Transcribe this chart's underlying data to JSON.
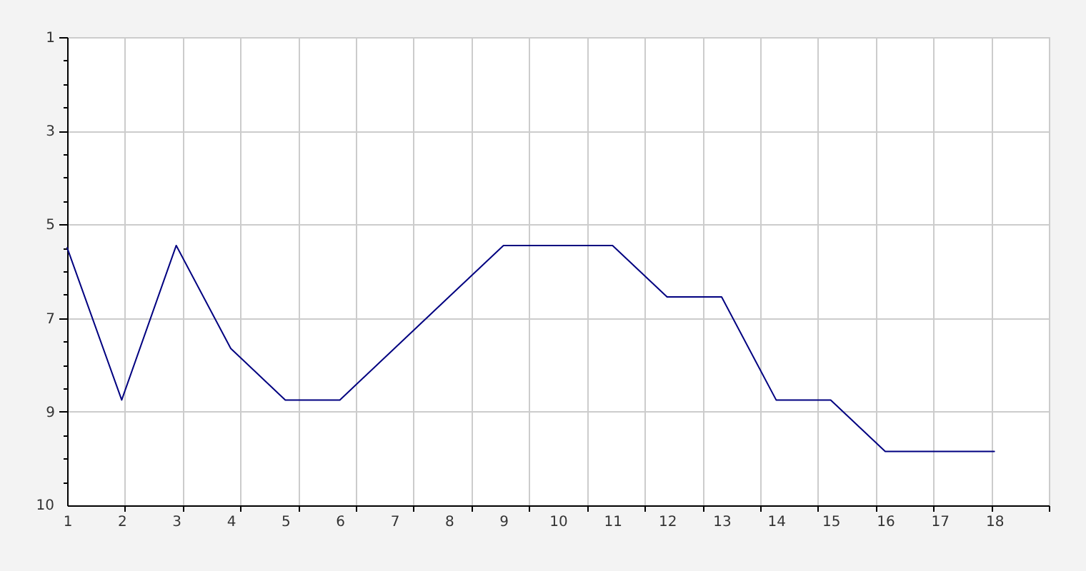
{
  "chart_data": {
    "type": "line",
    "x": [
      1,
      2,
      3,
      4,
      5,
      6,
      7,
      8,
      9,
      10,
      11,
      12,
      13,
      14,
      15,
      16,
      17,
      18
    ],
    "series": [
      {
        "color": "#000080",
        "values": [
          5.5,
          8.75,
          5.45,
          7.65,
          8.75,
          8.75,
          7.65,
          6.55,
          5.45,
          5.45,
          5.45,
          6.55,
          6.55,
          8.75,
          8.75,
          9.85,
          9.85,
          9.85
        ]
      }
    ],
    "xlim": [
      1,
      19
    ],
    "xticks": [
      1,
      2,
      3,
      4,
      5,
      6,
      7,
      8,
      9,
      10,
      11,
      12,
      13,
      14,
      15,
      16,
      17,
      18,
      {
        "value": 2.06,
        "label": null
      },
      {
        "value": 3.12,
        "label": null
      },
      {
        "value": 4.18,
        "label": null
      },
      {
        "value": 5.24,
        "label": null
      },
      {
        "value": 6.29,
        "label": null
      },
      {
        "value": 7.35,
        "label": null
      },
      {
        "value": 8.41,
        "label": null
      },
      {
        "value": 9.47,
        "label": null
      },
      {
        "value": 10.53,
        "label": null
      },
      {
        "value": 11.59,
        "label": null
      },
      {
        "value": 12.65,
        "label": null
      },
      {
        "value": 13.71,
        "label": null
      },
      {
        "value": 14.76,
        "label": null
      },
      {
        "value": 15.82,
        "label": null
      },
      {
        "value": 16.88,
        "label": null
      },
      {
        "value": 17.94,
        "label": null
      },
      {
        "value": 19,
        "label": null
      }
    ],
    "ylim": [
      11,
      1
    ],
    "yticks": [
      1,
      3,
      5,
      7,
      9,
      {
        "value": 1.5,
        "label": null
      },
      {
        "value": 2,
        "label": null
      },
      {
        "value": 2.5,
        "label": null
      },
      {
        "value": 3.5,
        "label": null
      },
      {
        "value": 4,
        "label": null
      },
      {
        "value": 4.5,
        "label": null
      },
      {
        "value": 5.5,
        "label": null
      },
      {
        "value": 6,
        "label": null
      },
      {
        "value": 6.5,
        "label": null
      },
      {
        "value": 7.5,
        "label": null
      },
      {
        "value": 8,
        "label": null
      },
      {
        "value": 8.5,
        "label": null
      },
      {
        "value": 9.5,
        "label": null
      },
      {
        "value": 10,
        "label": null
      },
      {
        "value": 10.5,
        "label": null
      }
    ],
    "annotations": [
      "10"
    ],
    "grid": true
  }
}
